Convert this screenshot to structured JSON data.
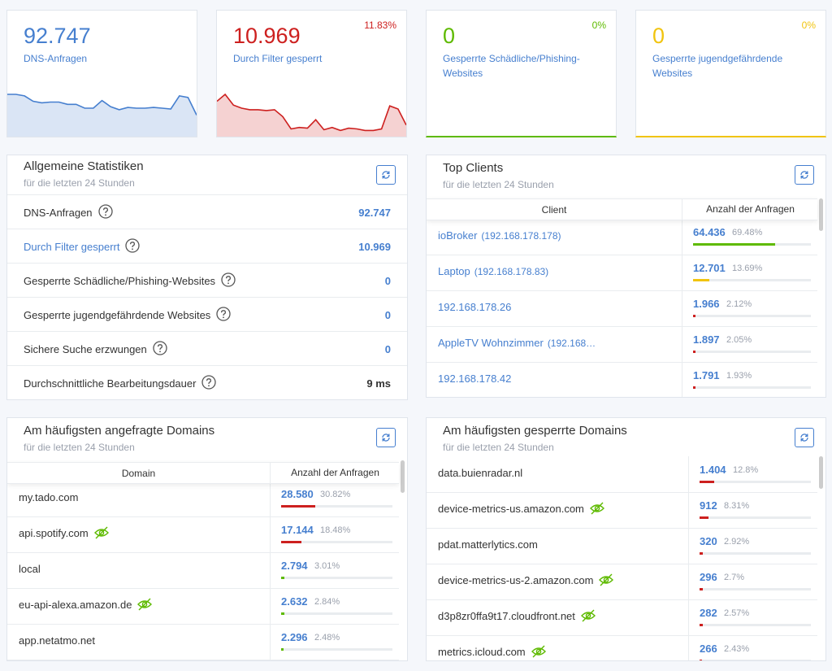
{
  "stat_cards": [
    {
      "value": "92.747",
      "label": "DNS-Anfragen",
      "color": "#467fcf",
      "sparkline": [
        55,
        55,
        53,
        46,
        44,
        45,
        45,
        42,
        42,
        37,
        37,
        47,
        39,
        35,
        38,
        37,
        37,
        38,
        37,
        36,
        53,
        51,
        28
      ]
    },
    {
      "value": "10.969",
      "label": "Durch Filter gesperrt",
      "percent": "11.83%",
      "color": "#cd201f",
      "sparkline": [
        46,
        55,
        41,
        37,
        35,
        35,
        34,
        35,
        26,
        10,
        12,
        11,
        22,
        9,
        12,
        8,
        11,
        10,
        8,
        8,
        10,
        40,
        36,
        15
      ]
    },
    {
      "value": "0",
      "label": "Gesperrte Schädliche/Phishing-Websites",
      "percent": "0%",
      "color": "#5eba00"
    },
    {
      "value": "0",
      "label": "Gesperrte jugendgefährdende Websites",
      "percent": "0%",
      "color": "#f1c40f"
    }
  ],
  "general_stats": {
    "title": "Allgemeine Statistiken",
    "subtitle": "für die letzten 24 Stunden",
    "rows": [
      {
        "label": "DNS-Anfragen",
        "value": "92.747"
      },
      {
        "label": "Durch Filter gesperrt",
        "value": "10.969"
      },
      {
        "label": "Gesperrte Schädliche/Phishing-Websites",
        "value": "0"
      },
      {
        "label": "Gesperrte jugendgefährdende Websites",
        "value": "0"
      },
      {
        "label": "Sichere Suche erzwungen",
        "value": "0"
      },
      {
        "label": "Durchschnittliche Bearbeitungsdauer",
        "value": "9 ms"
      }
    ]
  },
  "top_clients": {
    "title": "Top Clients",
    "subtitle": "für die letzten 24 Stunden",
    "columns": [
      "Client",
      "Anzahl der Anfragen"
    ],
    "rows": [
      {
        "name": "ioBroker",
        "ip": "(192.168.178.178)",
        "count": "64.436",
        "percent": 69.48,
        "percent_label": "69.48%",
        "color": "#5eba00"
      },
      {
        "name": "Laptop",
        "ip": "(192.168.178.83)",
        "count": "12.701",
        "percent": 13.69,
        "percent_label": "13.69%",
        "color": "#f1c40f"
      },
      {
        "name": "192.168.178.26",
        "count": "1.966",
        "percent": 2.12,
        "percent_label": "2.12%",
        "color": "#cd201f"
      },
      {
        "name": "AppleTV Wohnzimmer",
        "ip": "(192.168…",
        "count": "1.897",
        "percent": 2.05,
        "percent_label": "2.05%",
        "color": "#cd201f"
      },
      {
        "name": "192.168.178.42",
        "count": "1.791",
        "percent": 1.93,
        "percent_label": "1.93%",
        "color": "#cd201f"
      }
    ]
  },
  "queried_domains": {
    "title": "Am häufigsten angefragte Domains",
    "subtitle": "für die letzten 24 Stunden",
    "columns": [
      "Domain",
      "Anzahl der Anfragen"
    ],
    "rows": [
      {
        "name": "my.tado.com",
        "count": "28.580",
        "percent": 30.82,
        "percent_label": "30.82%",
        "color": "#cd201f"
      },
      {
        "name": "api.spotify.com",
        "tracker": true,
        "count": "17.144",
        "percent": 18.48,
        "percent_label": "18.48%",
        "color": "#cd201f"
      },
      {
        "name": "local",
        "count": "2.794",
        "percent": 3.01,
        "percent_label": "3.01%",
        "color": "#5eba00"
      },
      {
        "name": "eu-api-alexa.amazon.de",
        "tracker": true,
        "count": "2.632",
        "percent": 2.84,
        "percent_label": "2.84%",
        "color": "#5eba00"
      },
      {
        "name": "app.netatmo.net",
        "count": "2.296",
        "percent": 2.48,
        "percent_label": "2.48%",
        "color": "#5eba00"
      }
    ]
  },
  "blocked_domains": {
    "title": "Am häufigsten gesperrte Domains",
    "subtitle": "für die letzten 24 Stunden",
    "rows": [
      {
        "name": "data.buienradar.nl",
        "count": "1.404",
        "percent": 12.8,
        "percent_label": "12.8%",
        "color": "#cd201f"
      },
      {
        "name": "device-metrics-us.amazon.com",
        "tracker": true,
        "count": "912",
        "percent": 8.31,
        "percent_label": "8.31%",
        "color": "#cd201f"
      },
      {
        "name": "pdat.matterlytics.com",
        "count": "320",
        "percent": 2.92,
        "percent_label": "2.92%",
        "color": "#cd201f"
      },
      {
        "name": "device-metrics-us-2.amazon.com",
        "tracker": true,
        "count": "296",
        "percent": 2.7,
        "percent_label": "2.7%",
        "color": "#cd201f"
      },
      {
        "name": "d3p8zr0ffa9t17.cloudfront.net",
        "tracker": true,
        "count": "282",
        "percent": 2.57,
        "percent_label": "2.57%",
        "color": "#cd201f"
      },
      {
        "name": "metrics.icloud.com",
        "tracker": true,
        "count": "266",
        "percent": 2.43,
        "percent_label": "2.43%",
        "color": "#cd201f"
      }
    ]
  }
}
